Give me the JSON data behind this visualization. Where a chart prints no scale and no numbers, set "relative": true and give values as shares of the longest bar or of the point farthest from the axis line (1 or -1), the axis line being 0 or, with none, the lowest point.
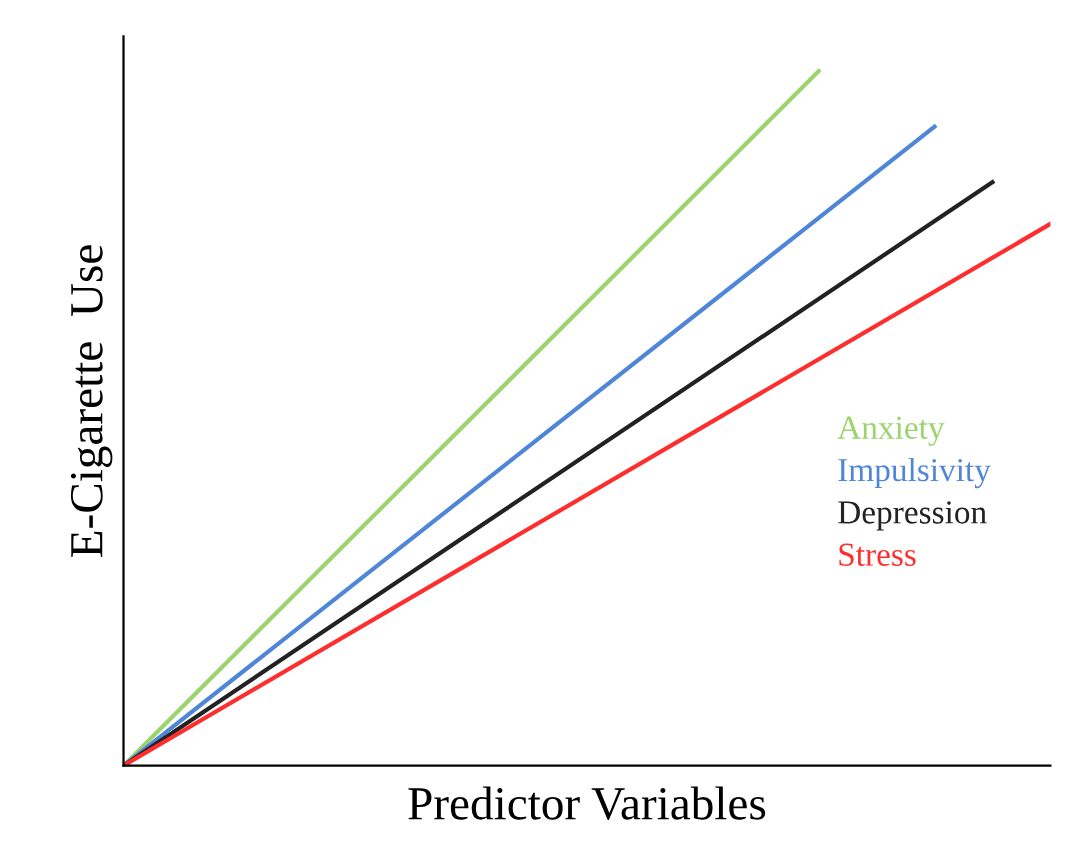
{
  "chart_data": {
    "type": "line",
    "relative": true,
    "xlabel": "Predictor Variables",
    "ylabel": "E-Cigarette  Use",
    "marker": "none",
    "line_style": "solid",
    "categories": [
      null,
      null,
      null,
      null,
      null,
      null,
      null,
      null,
      null,
      null,
      null,
      null,
      null,
      null,
      null,
      null,
      null
    ],
    "series": [
      {
        "name": "Anxiety",
        "color": "#9bd36c",
        "values": [
          0,
          null,
          null,
          null,
          null,
          null,
          null,
          null,
          null,
          null,
          null,
          null,
          1,
          null,
          null,
          null,
          null
        ]
      },
      {
        "name": "Impulsivity",
        "color": "#4f86d8",
        "values": [
          0,
          null,
          null,
          null,
          null,
          null,
          null,
          null,
          null,
          null,
          null,
          null,
          null,
          null,
          0.92,
          null,
          null
        ]
      },
      {
        "name": "Depression",
        "color": "#222222",
        "values": [
          0,
          null,
          null,
          null,
          null,
          null,
          null,
          null,
          null,
          null,
          null,
          null,
          null,
          null,
          null,
          0.84,
          null
        ]
      },
      {
        "name": "Stress",
        "color": "#ff2e2e",
        "values": [
          0,
          null,
          null,
          null,
          null,
          null,
          null,
          null,
          null,
          null,
          null,
          null,
          null,
          null,
          null,
          null,
          0.78
        ]
      }
    ]
  }
}
